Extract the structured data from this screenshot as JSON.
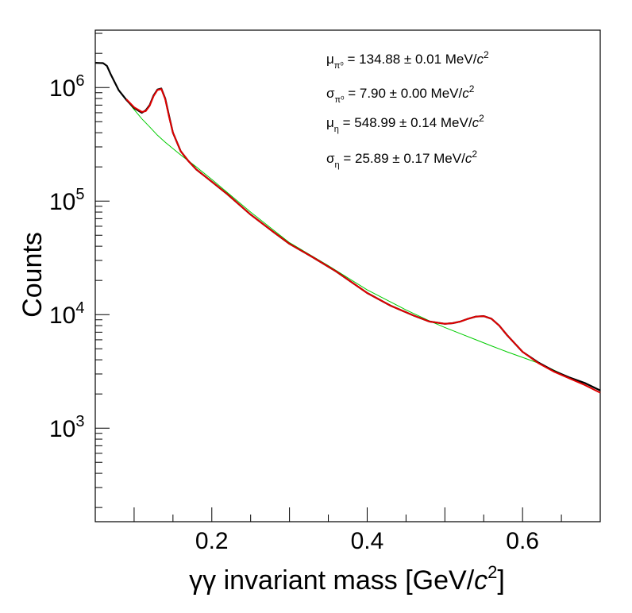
{
  "chart_data": {
    "type": "line",
    "title": "",
    "xlabel": "γγ invariant mass [GeV/c²]",
    "ylabel": "Counts",
    "xlim": [
      0.05,
      0.7
    ],
    "ylim": [
      150,
      3200000
    ],
    "yscale": "log",
    "grid": false,
    "x_ticks": [
      "0.2",
      "0.4",
      "0.6"
    ],
    "y_ticks": [
      {
        "base": "10",
        "exp": "3"
      },
      {
        "base": "10",
        "exp": "4"
      },
      {
        "base": "10",
        "exp": "5"
      },
      {
        "base": "10",
        "exp": "6"
      }
    ],
    "colors": {
      "data": "#000000",
      "fit": "#e00000",
      "background": "#00cc00",
      "overlap": "#d09000"
    },
    "series": [
      {
        "role": "data",
        "x": [
          0.05,
          0.06,
          0.065,
          0.07,
          0.08,
          0.09,
          0.1,
          0.11,
          0.115,
          0.12,
          0.125,
          0.13,
          0.135,
          0.14,
          0.145,
          0.15,
          0.16,
          0.17,
          0.18,
          0.2,
          0.22,
          0.25,
          0.28,
          0.3,
          0.33,
          0.36,
          0.4,
          0.43,
          0.46,
          0.48,
          0.5,
          0.51,
          0.52,
          0.53,
          0.54,
          0.55,
          0.56,
          0.57,
          0.58,
          0.6,
          0.62,
          0.64,
          0.66,
          0.68,
          0.7
        ],
        "y": [
          1650000,
          1640000,
          1550000,
          1300000,
          950000,
          780000,
          660000,
          600000,
          630000,
          700000,
          850000,
          960000,
          980000,
          800000,
          560000,
          400000,
          275000,
          225000,
          190000,
          148000,
          115000,
          76000,
          53000,
          42000,
          32000,
          24000,
          15500,
          12000,
          9800,
          8700,
          8300,
          8400,
          8700,
          9200,
          9600,
          9700,
          9200,
          8000,
          6600,
          4700,
          3800,
          3200,
          2800,
          2500,
          2150
        ]
      },
      {
        "role": "fit",
        "x": [
          0.09,
          0.1,
          0.11,
          0.115,
          0.12,
          0.125,
          0.13,
          0.135,
          0.14,
          0.145,
          0.15,
          0.16,
          0.17,
          0.18,
          0.2,
          0.22,
          0.25,
          0.28,
          0.3,
          0.33,
          0.36,
          0.4,
          0.43,
          0.46,
          0.48,
          0.5,
          0.51,
          0.52,
          0.53,
          0.54,
          0.55,
          0.56,
          0.57,
          0.58,
          0.6,
          0.62,
          0.64,
          0.66,
          0.68,
          0.7
        ],
        "y": [
          790000,
          670000,
          610000,
          620000,
          690000,
          840000,
          950000,
          970000,
          790000,
          550000,
          400000,
          275000,
          225000,
          190000,
          148000,
          115000,
          76000,
          53000,
          42000,
          32000,
          24000,
          15500,
          12000,
          9800,
          8700,
          8300,
          8400,
          8700,
          9200,
          9600,
          9700,
          9200,
          8000,
          6600,
          4700,
          3750,
          3150,
          2750,
          2400,
          2050
        ]
      },
      {
        "role": "background",
        "x": [
          0.09,
          0.1,
          0.11,
          0.12,
          0.13,
          0.14,
          0.15,
          0.16,
          0.18,
          0.2,
          0.25,
          0.3,
          0.35,
          0.4,
          0.45,
          0.48,
          0.5,
          0.52,
          0.54,
          0.56,
          0.58,
          0.6,
          0.62,
          0.64,
          0.66,
          0.68,
          0.7
        ],
        "y": [
          780000,
          640000,
          530000,
          450000,
          380000,
          330000,
          290000,
          255000,
          200000,
          155000,
          80000,
          43000,
          27000,
          16500,
          11000,
          8800,
          7700,
          6800,
          6000,
          5300,
          4700,
          4200,
          3750,
          3250,
          2800,
          2400,
          2050
        ]
      }
    ],
    "annotations": [
      {
        "sym": "μ",
        "sub": "π⁰",
        "text": " = 134.88 ± 0.01 MeV/",
        "unit": "c",
        "sup": "2"
      },
      {
        "sym": "σ",
        "sub": "π⁰",
        "text": " = 7.90 ± 0.00 MeV/",
        "unit": "c",
        "sup": "2"
      },
      {
        "sym": "μ",
        "sub": "η",
        "text": " = 548.99 ± 0.14 MeV/",
        "unit": "c",
        "sup": "2"
      },
      {
        "sym": "σ",
        "sub": "η",
        "text": " = 25.89 ± 0.17 MeV/",
        "unit": "c",
        "sup": "2"
      }
    ]
  }
}
